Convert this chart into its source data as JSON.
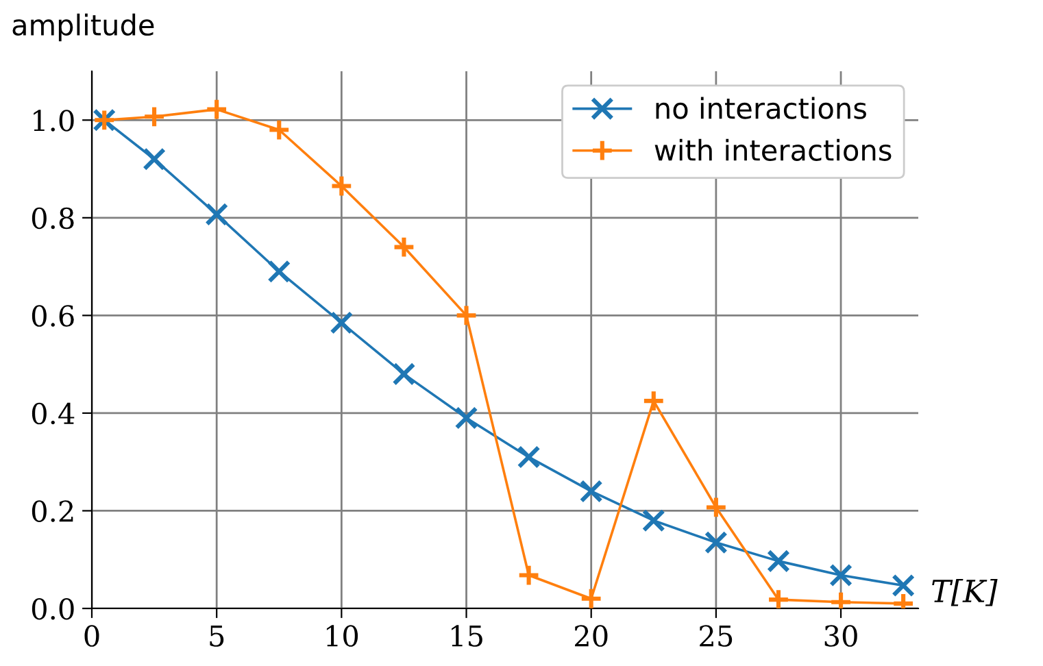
{
  "chart_data": {
    "type": "line",
    "xlabel": "T[K]",
    "ylabel": "amplitude",
    "x": [
      0.5,
      2.5,
      5,
      7.5,
      10,
      12.5,
      15,
      17.5,
      20,
      22.5,
      25,
      27.5,
      30,
      32.5
    ],
    "series": [
      {
        "name": "no interactions",
        "color": "#1f77b4",
        "marker": "cross",
        "values": [
          1.0,
          0.92,
          0.807,
          0.69,
          0.585,
          0.48,
          0.39,
          0.31,
          0.24,
          0.18,
          0.135,
          0.097,
          0.068,
          0.047
        ]
      },
      {
        "name": "with interactions",
        "color": "#ff7f0e",
        "marker": "plus",
        "values": [
          1.0,
          1.007,
          1.022,
          0.98,
          0.865,
          0.74,
          0.6,
          0.068,
          0.02,
          0.425,
          0.207,
          0.018,
          0.013,
          0.01
        ]
      }
    ],
    "xlim": [
      0,
      33.1
    ],
    "ylim": [
      0,
      1.1
    ],
    "xticks": [
      0,
      5,
      10,
      15,
      20,
      25,
      30
    ],
    "yticks": [
      {
        "value": 0,
        "label": "0.0"
      },
      {
        "value": 0.2,
        "label": "0.2"
      },
      {
        "value": 0.4,
        "label": "0.4"
      },
      {
        "value": 0.6,
        "label": "0.6"
      },
      {
        "value": 0.8,
        "label": "0.8"
      },
      {
        "value": 1.0,
        "label": "1.0"
      }
    ],
    "grid": true,
    "legend": "top right",
    "line_style": "solid"
  }
}
